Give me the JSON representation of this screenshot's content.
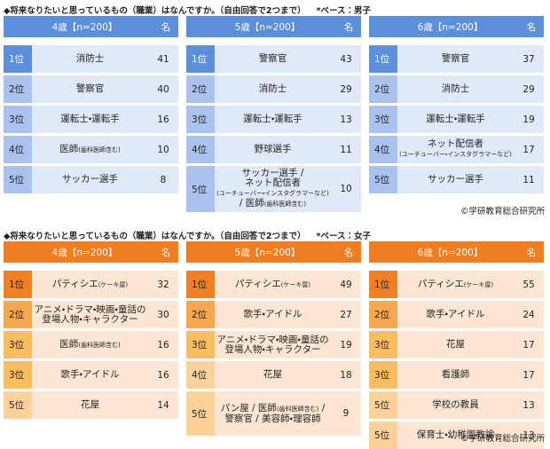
{
  "sections": [
    {
      "question": "◆将来なりたいと思っているもの（職業）はなんですか。（自由回答で2つまで）",
      "base": "*ベース：男子",
      "credit": "©学研教育総合研究所",
      "tables": [
        {
          "header": "4歳【n=200】",
          "unit": "名",
          "rows": [
            {
              "rank": "1位",
              "job": [
                "消防士"
              ],
              "count": 41
            },
            {
              "rank": "2位",
              "job": [
                "警察官"
              ],
              "count": 40
            },
            {
              "rank": "3位",
              "job": [
                "運転士・運転手"
              ],
              "count": 16
            },
            {
              "rank": "4位",
              "job": [
                {
                  "text": "医師",
                  "small": "(歯科医師含む)"
                }
              ],
              "count": 10
            },
            {
              "rank": "5位",
              "job": [
                "サッカー選手"
              ],
              "count": 8
            }
          ]
        },
        {
          "header": "5歳【n=200】",
          "unit": "名",
          "rows": [
            {
              "rank": "1位",
              "job": [
                "警察官"
              ],
              "count": 43
            },
            {
              "rank": "2位",
              "job": [
                "消防士"
              ],
              "count": 29
            },
            {
              "rank": "3位",
              "job": [
                "運転士・運転手"
              ],
              "count": 13
            },
            {
              "rank": "4位",
              "job": [
                "野球選手"
              ],
              "count": 11
            },
            {
              "rank": "5位",
              "job": [
                "サッカー選手 /",
                "ネット配信者",
                {
                  "small": "(ユーチューバー・インスタグラマーなど)"
                },
                {
                  "text": "/ 医師",
                  "small": "(歯科医師含む)"
                }
              ],
              "count": 10
            }
          ]
        },
        {
          "header": "6歳【n=200】",
          "unit": "名",
          "rows": [
            {
              "rank": "1位",
              "job": [
                "警察官"
              ],
              "count": 37
            },
            {
              "rank": "2位",
              "job": [
                "消防士"
              ],
              "count": 29
            },
            {
              "rank": "3位",
              "job": [
                "運転士・運転手"
              ],
              "count": 19
            },
            {
              "rank": "4位",
              "job": [
                "ネット配信者",
                {
                  "small": "(ユーチューバー・インスタグラマーなど)"
                }
              ],
              "count": 17
            },
            {
              "rank": "5位",
              "job": [
                "サッカー選手"
              ],
              "count": 11
            }
          ]
        }
      ]
    },
    {
      "question": "◆将来なりたいと思っているもの（職業）はなんですか。（自由回答で2つまで）",
      "base": "*ベース：女子",
      "credit": "©学研教育総合研究所",
      "tables": [
        {
          "header": "4歳【n=200】",
          "unit": "名",
          "rows": [
            {
              "rank": "1位",
              "job": [
                {
                  "text": "パティシエ",
                  "small": "(ケーキ屋)"
                }
              ],
              "count": 32
            },
            {
              "rank": "2位",
              "job": [
                "アニメ・ドラマ・映画・童話の",
                "登場人物・キャラクター"
              ],
              "count": 30
            },
            {
              "rank": "3位",
              "job": [
                {
                  "text": "医師",
                  "small": "(歯科医師含む)"
                }
              ],
              "count": 16
            },
            {
              "rank": "3位",
              "job": [
                "歌手・アイドル"
              ],
              "count": 16
            },
            {
              "rank": "5位",
              "job": [
                "花屋"
              ],
              "count": 14
            }
          ]
        },
        {
          "header": "5歳【n=200】",
          "unit": "名",
          "rows": [
            {
              "rank": "1位",
              "job": [
                {
                  "text": "パティシエ",
                  "small": "(ケーキ屋)"
                }
              ],
              "count": 49
            },
            {
              "rank": "2位",
              "job": [
                "歌手・アイドル"
              ],
              "count": 27
            },
            {
              "rank": "3位",
              "job": [
                "アニメ・ドラマ・映画・童話の",
                "登場人物・キャラクター"
              ],
              "count": 19
            },
            {
              "rank": "4位",
              "job": [
                "花屋"
              ],
              "count": 18
            },
            {
              "rank": "5位",
              "job": [
                {
                  "text": "パン屋 / 医師",
                  "small": "(歯科医師含む)",
                  "after": " /"
                },
                "警察官 / 美容師・理容師"
              ],
              "count": 9
            }
          ]
        },
        {
          "header": "6歳【n=200】",
          "unit": "名",
          "rows": [
            {
              "rank": "1位",
              "job": [
                {
                  "text": "パティシエ",
                  "small": "(ケーキ屋)"
                }
              ],
              "count": 55
            },
            {
              "rank": "2位",
              "job": [
                "歌手・アイドル"
              ],
              "count": 24
            },
            {
              "rank": "3位",
              "job": [
                "花屋"
              ],
              "count": 17
            },
            {
              "rank": "3位",
              "job": [
                "看護師"
              ],
              "count": 17
            },
            {
              "rank": "5位",
              "job": [
                "学校の教員"
              ],
              "count": 13
            },
            {
              "rank": "5位",
              "job": [
                "保育士・幼稚園教諭"
              ],
              "count": 13
            }
          ]
        }
      ]
    }
  ]
}
